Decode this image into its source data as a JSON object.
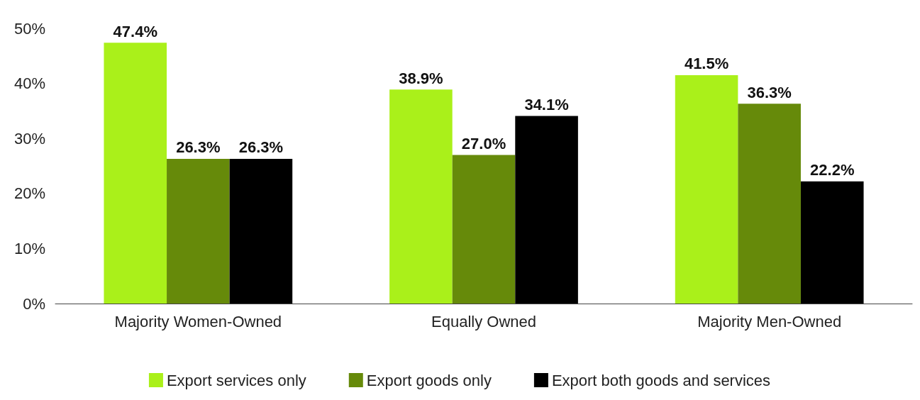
{
  "chart_data": {
    "type": "bar",
    "categories": [
      "Majority Women-Owned",
      "Equally Owned",
      "Majority Men-Owned"
    ],
    "series": [
      {
        "name": "Export services only",
        "color": "#aaf01a",
        "values": [
          47.4,
          38.9,
          41.5
        ],
        "value_labels": [
          "47.4%",
          "38.9%",
          "41.5%"
        ]
      },
      {
        "name": "Export goods only",
        "color": "#668a0a",
        "values": [
          26.3,
          27.0,
          36.3
        ],
        "value_labels": [
          "26.3%",
          "27.0%",
          "36.3%"
        ]
      },
      {
        "name": "Export both goods and services",
        "color": "#000000",
        "values": [
          26.3,
          34.1,
          22.2
        ],
        "value_labels": [
          "26.3%",
          "34.1%",
          "22.2%"
        ]
      }
    ],
    "ylim": [
      0,
      50
    ],
    "yticks": [
      {
        "value": 0,
        "label": "0%"
      },
      {
        "value": 10,
        "label": "10%"
      },
      {
        "value": 20,
        "label": "20%"
      },
      {
        "value": 30,
        "label": "30%"
      },
      {
        "value": 40,
        "label": "40%"
      },
      {
        "value": 50,
        "label": "50%"
      }
    ],
    "grid": false,
    "legend": "bottom"
  }
}
